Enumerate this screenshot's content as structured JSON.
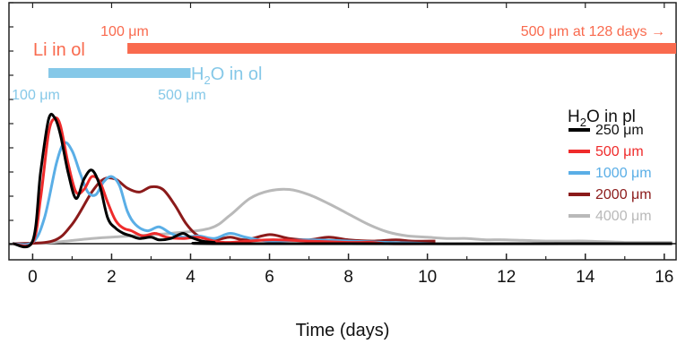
{
  "chart_data": {
    "type": "line",
    "xlabel": "Time (days)",
    "ylabel": "",
    "xlim": [
      -0.6,
      16.3
    ],
    "ylim": [
      0,
      1.0
    ],
    "x_ticks": [
      "0",
      "2",
      "4",
      "6",
      "8",
      "10",
      "12",
      "14",
      "16"
    ],
    "legend": {
      "title_prefix": "H",
      "title_sub": "2",
      "title_suffix": "O in pl",
      "placement": "right"
    },
    "series": [
      {
        "name": "250 μm",
        "color": "#000000",
        "points": [
          [
            -0.5,
            0
          ],
          [
            0,
            0.02
          ],
          [
            0.2,
            0.55
          ],
          [
            0.4,
            0.96
          ],
          [
            0.55,
            0.98
          ],
          [
            0.7,
            0.85
          ],
          [
            0.9,
            0.55
          ],
          [
            1.1,
            0.35
          ],
          [
            1.3,
            0.5
          ],
          [
            1.5,
            0.57
          ],
          [
            1.7,
            0.45
          ],
          [
            1.9,
            0.2
          ],
          [
            2.1,
            0.12
          ],
          [
            2.3,
            0.08
          ],
          [
            2.5,
            0.06
          ],
          [
            2.7,
            0.04
          ],
          [
            3.0,
            0.05
          ],
          [
            3.2,
            0.03
          ],
          [
            3.5,
            0.04
          ],
          [
            3.8,
            0.08
          ],
          [
            4.0,
            0.05
          ],
          [
            4.3,
            0.02
          ],
          [
            4.6,
            0.01
          ],
          [
            5.0,
            0
          ],
          [
            16.2,
            0
          ]
        ]
      },
      {
        "name": "500 μm",
        "color": "#ef2b2b",
        "points": [
          [
            -0.5,
            0
          ],
          [
            0,
            0.01
          ],
          [
            0.2,
            0.35
          ],
          [
            0.4,
            0.85
          ],
          [
            0.55,
            0.97
          ],
          [
            0.7,
            0.92
          ],
          [
            0.9,
            0.62
          ],
          [
            1.1,
            0.4
          ],
          [
            1.3,
            0.42
          ],
          [
            1.5,
            0.52
          ],
          [
            1.7,
            0.48
          ],
          [
            1.9,
            0.32
          ],
          [
            2.1,
            0.18
          ],
          [
            2.3,
            0.12
          ],
          [
            2.5,
            0.1
          ],
          [
            2.8,
            0.06
          ],
          [
            3.1,
            0.08
          ],
          [
            3.4,
            0.05
          ],
          [
            3.8,
            0.04
          ],
          [
            4.2,
            0.05
          ],
          [
            4.6,
            0.02
          ],
          [
            5.0,
            0.01
          ],
          [
            6,
            0.03
          ],
          [
            7,
            0.02
          ],
          [
            8,
            0.01
          ],
          [
            8.6,
            0.01
          ],
          [
            9,
            0
          ],
          [
            10.2,
            0
          ]
        ]
      },
      {
        "name": "1000 μm",
        "color": "#5aaee6",
        "points": [
          [
            -0.5,
            0
          ],
          [
            0,
            0.01
          ],
          [
            0.3,
            0.2
          ],
          [
            0.6,
            0.62
          ],
          [
            0.8,
            0.78
          ],
          [
            1.0,
            0.72
          ],
          [
            1.2,
            0.55
          ],
          [
            1.4,
            0.4
          ],
          [
            1.6,
            0.38
          ],
          [
            1.8,
            0.48
          ],
          [
            2.0,
            0.52
          ],
          [
            2.2,
            0.45
          ],
          [
            2.4,
            0.25
          ],
          [
            2.6,
            0.15
          ],
          [
            2.9,
            0.1
          ],
          [
            3.2,
            0.13
          ],
          [
            3.5,
            0.08
          ],
          [
            3.8,
            0.05
          ],
          [
            4.2,
            0.06
          ],
          [
            4.6,
            0.04
          ],
          [
            5.0,
            0.08
          ],
          [
            5.4,
            0.05
          ],
          [
            6,
            0.02
          ],
          [
            7,
            0.03
          ],
          [
            8,
            0.02
          ],
          [
            9,
            0.01
          ],
          [
            10.2,
            0
          ]
        ]
      },
      {
        "name": "2000 μm",
        "color": "#8b1a1a",
        "points": [
          [
            -0.5,
            0
          ],
          [
            0.5,
            0.02
          ],
          [
            1.0,
            0.15
          ],
          [
            1.5,
            0.4
          ],
          [
            1.8,
            0.5
          ],
          [
            2.1,
            0.5
          ],
          [
            2.4,
            0.43
          ],
          [
            2.7,
            0.4
          ],
          [
            3.0,
            0.44
          ],
          [
            3.3,
            0.42
          ],
          [
            3.6,
            0.3
          ],
          [
            3.9,
            0.15
          ],
          [
            4.2,
            0.06
          ],
          [
            4.6,
            0.03
          ],
          [
            5.0,
            0.05
          ],
          [
            5.4,
            0.03
          ],
          [
            6,
            0.07
          ],
          [
            6.5,
            0.04
          ],
          [
            7,
            0.03
          ],
          [
            7.5,
            0.05
          ],
          [
            8,
            0.03
          ],
          [
            8.6,
            0.02
          ],
          [
            9.2,
            0.03
          ],
          [
            9.6,
            0.02
          ],
          [
            10.2,
            0.02
          ]
        ]
      },
      {
        "name": "4000 μm",
        "color": "#b9b9b9",
        "points": [
          [
            -0.5,
            0
          ],
          [
            0.5,
            0.01
          ],
          [
            1.5,
            0.04
          ],
          [
            2.5,
            0.06
          ],
          [
            3.5,
            0.08
          ],
          [
            4.5,
            0.12
          ],
          [
            5.0,
            0.22
          ],
          [
            5.5,
            0.35
          ],
          [
            6.0,
            0.41
          ],
          [
            6.5,
            0.42
          ],
          [
            7.0,
            0.38
          ],
          [
            7.5,
            0.31
          ],
          [
            8.0,
            0.23
          ],
          [
            8.5,
            0.15
          ],
          [
            9.0,
            0.09
          ],
          [
            9.5,
            0.06
          ],
          [
            10,
            0.05
          ],
          [
            10.5,
            0.04
          ],
          [
            11,
            0.04
          ],
          [
            11.5,
            0.03
          ],
          [
            12,
            0.03
          ],
          [
            13,
            0.02
          ],
          [
            14,
            0.02
          ],
          [
            15,
            0.01
          ],
          [
            16.2,
            0.01
          ]
        ]
      }
    ],
    "bars": [
      {
        "label": "Li in ol",
        "color": "#f96a4e",
        "start_label": "100 μm",
        "end_label": "500 μm at 128 days →",
        "x_start": 2.4,
        "x_end": 16.3
      },
      {
        "label_prefix": "H",
        "label_sub": "2",
        "label_suffix": "O in ol",
        "color": "#85c8e8",
        "start_label": "100 μm",
        "end_label": "500 μm",
        "x_start": 0.4,
        "x_end": 4.0
      }
    ]
  }
}
